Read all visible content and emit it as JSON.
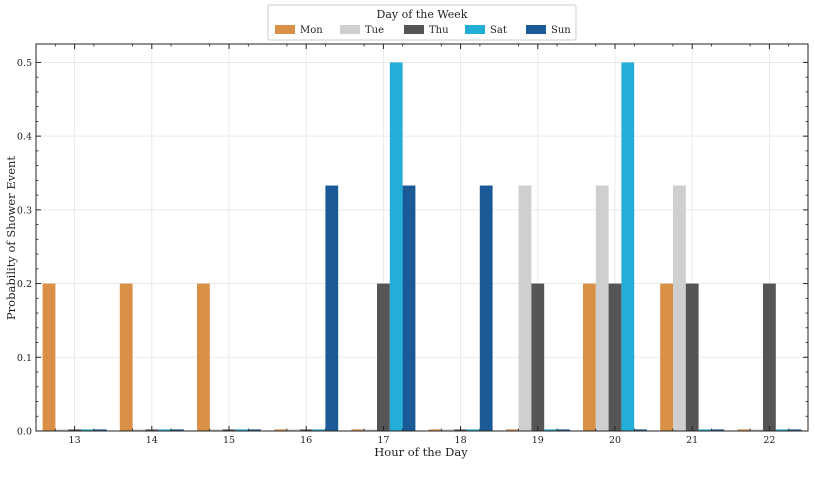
{
  "chart_data": {
    "type": "bar",
    "xlabel": "Hour of the Day",
    "ylabel": "Probability of Shower Event",
    "ylim": [
      0,
      0.525
    ],
    "yticks": [
      "0.0",
      "0.1",
      "0.2",
      "0.3",
      "0.4",
      "0.5"
    ],
    "categories": [
      "13",
      "14",
      "15",
      "16",
      "17",
      "18",
      "19",
      "20",
      "21",
      "22"
    ],
    "grid": true,
    "legend": {
      "title": "Day of the Week",
      "placement": "top-center"
    },
    "series": [
      {
        "name": "Mon",
        "color": "#D98F45",
        "values": [
          0.2,
          0.2,
          0.2,
          0,
          0,
          0,
          0,
          0.2,
          0.2,
          0
        ]
      },
      {
        "name": "Tue",
        "color": "#CFCFCF",
        "values": [
          0,
          0,
          0,
          0,
          0,
          0,
          0.333,
          0.333,
          0.333,
          0
        ]
      },
      {
        "name": "Thu",
        "color": "#555555",
        "values": [
          0,
          0,
          0,
          0,
          0.2,
          0,
          0.2,
          0.2,
          0.2,
          0.2
        ]
      },
      {
        "name": "Sat",
        "color": "#22AED6",
        "values": [
          0,
          0,
          0,
          0,
          0.5,
          0,
          0,
          0.5,
          0,
          0
        ]
      },
      {
        "name": "Sun",
        "color": "#1A5A96",
        "values": [
          0,
          0,
          0,
          0.333,
          0.333,
          0.333,
          0,
          0,
          0,
          0
        ]
      }
    ]
  }
}
